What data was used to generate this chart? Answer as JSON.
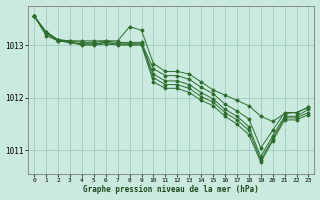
{
  "title": "Graphe pression niveau de la mer (hPa)",
  "bg_color": "#caeae0",
  "grid_color": "#a0ccc0",
  "line_color": "#2d6e2d",
  "xlim": [
    -0.5,
    23.5
  ],
  "ylim": [
    1010.55,
    1013.75
  ],
  "yticks": [
    1011,
    1012,
    1013
  ],
  "x_ticks": [
    0,
    1,
    2,
    3,
    4,
    5,
    6,
    7,
    8,
    9,
    10,
    11,
    12,
    13,
    14,
    15,
    16,
    17,
    18,
    19,
    20,
    21,
    22,
    23
  ],
  "series": [
    [
      1013.55,
      1013.25,
      1013.1,
      1013.08,
      1013.08,
      1013.08,
      1013.08,
      1013.08,
      1013.35,
      1013.28,
      1012.65,
      1012.5,
      1012.5,
      1012.45,
      1012.3,
      1012.15,
      1012.05,
      1011.95,
      1011.85,
      1011.65,
      1011.55,
      1011.7,
      1011.72,
      1011.82
    ],
    [
      1013.55,
      1013.25,
      1013.1,
      1013.08,
      1013.05,
      1013.05,
      1013.08,
      1013.05,
      1013.05,
      1013.05,
      1012.55,
      1012.42,
      1012.42,
      1012.35,
      1012.2,
      1012.08,
      1011.88,
      1011.75,
      1011.6,
      1011.05,
      1011.38,
      1011.72,
      1011.72,
      1011.82
    ],
    [
      1013.55,
      1013.22,
      1013.1,
      1013.05,
      1013.02,
      1013.02,
      1013.05,
      1013.02,
      1013.02,
      1013.02,
      1012.45,
      1012.32,
      1012.32,
      1012.25,
      1012.1,
      1011.98,
      1011.78,
      1011.65,
      1011.45,
      1010.88,
      1011.28,
      1011.65,
      1011.65,
      1011.78
    ],
    [
      1013.55,
      1013.22,
      1013.08,
      1013.05,
      1013.02,
      1013.02,
      1013.05,
      1013.02,
      1013.02,
      1013.02,
      1012.38,
      1012.25,
      1012.25,
      1012.18,
      1012.02,
      1011.92,
      1011.72,
      1011.58,
      1011.38,
      1010.82,
      1011.22,
      1011.62,
      1011.62,
      1011.72
    ],
    [
      1013.55,
      1013.18,
      1013.08,
      1013.05,
      1013.0,
      1013.0,
      1013.02,
      1013.0,
      1013.0,
      1013.0,
      1012.3,
      1012.18,
      1012.18,
      1012.1,
      1011.95,
      1011.85,
      1011.65,
      1011.5,
      1011.3,
      1010.78,
      1011.18,
      1011.58,
      1011.58,
      1011.68
    ]
  ]
}
